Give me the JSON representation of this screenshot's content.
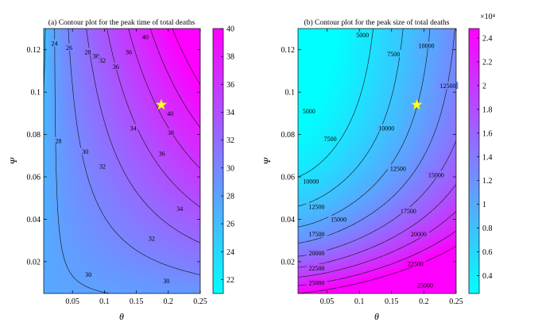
{
  "figure": {
    "colors": {
      "low": "#00ffff",
      "high": "#ff00ff",
      "star": "#ffff33",
      "star_stroke": "#d4d400"
    }
  },
  "chart_data": [
    {
      "type": "heatmap",
      "subtype": "filled-contour",
      "title": "(a) Contour plot for the peak time of total deaths",
      "xlabel": "θ",
      "ylabel": "Ψ",
      "xlim": [
        0.005,
        0.25
      ],
      "ylim": [
        0.005,
        0.13
      ],
      "xticks": [
        0.05,
        0.1,
        0.15,
        0.2,
        0.25
      ],
      "xtick_labels": [
        "0.05",
        "0.1",
        "0.15",
        "0.2",
        "0.25"
      ],
      "yticks": [
        0.02,
        0.04,
        0.06,
        0.08,
        0.1,
        0.12
      ],
      "ytick_labels": [
        "0.02",
        "0.04",
        "0.06",
        "0.08",
        "0.1",
        "0.12"
      ],
      "colorbar": {
        "range": [
          21,
          40
        ],
        "ticks": [
          22,
          24,
          26,
          28,
          30,
          32,
          34,
          36,
          38,
          40
        ],
        "tick_labels": [
          "22",
          "24",
          "26",
          "28",
          "30",
          "32",
          "34",
          "36",
          "38",
          "40"
        ],
        "exponent_label": ""
      },
      "contour_levels": [
        24,
        26,
        28,
        30,
        32,
        34,
        36,
        38,
        40
      ],
      "contour_labels": [
        {
          "text": "24",
          "x": 0.022,
          "y": 0.123
        },
        {
          "text": "26",
          "x": 0.045,
          "y": 0.121
        },
        {
          "text": "28",
          "x": 0.074,
          "y": 0.119
        },
        {
          "text": "30",
          "x": 0.087,
          "y": 0.117
        },
        {
          "text": "32",
          "x": 0.097,
          "y": 0.115
        },
        {
          "text": "36",
          "x": 0.118,
          "y": 0.112
        },
        {
          "text": "36",
          "x": 0.138,
          "y": 0.119
        },
        {
          "text": "40",
          "x": 0.164,
          "y": 0.126
        },
        {
          "text": "28",
          "x": 0.028,
          "y": 0.077
        },
        {
          "text": "30",
          "x": 0.07,
          "y": 0.072
        },
        {
          "text": "32",
          "x": 0.097,
          "y": 0.065
        },
        {
          "text": "34",
          "x": 0.145,
          "y": 0.083
        },
        {
          "text": "40",
          "x": 0.203,
          "y": 0.09
        },
        {
          "text": "38",
          "x": 0.204,
          "y": 0.081
        },
        {
          "text": "36",
          "x": 0.19,
          "y": 0.071
        },
        {
          "text": "34",
          "x": 0.218,
          "y": 0.045
        },
        {
          "text": "32",
          "x": 0.174,
          "y": 0.031
        },
        {
          "text": "30",
          "x": 0.075,
          "y": 0.014
        },
        {
          "text": "30",
          "x": 0.197,
          "y": 0.011
        }
      ],
      "marker": {
        "shape": "star",
        "x": 0.189,
        "y": 0.094
      }
    },
    {
      "type": "heatmap",
      "subtype": "filled-contour",
      "title": "(b) Contour plot for the peak size of total deaths",
      "xlabel": "θ",
      "ylabel": "Ψ",
      "xlim": [
        0.005,
        0.25
      ],
      "ylim": [
        0.005,
        0.13
      ],
      "xticks": [
        0.05,
        0.1,
        0.15,
        0.2,
        0.25
      ],
      "xtick_labels": [
        "0.05",
        "0.1",
        "0.15",
        "0.2",
        "0.25"
      ],
      "yticks": [
        0.02,
        0.04,
        0.06,
        0.08,
        0.1,
        0.12
      ],
      "ytick_labels": [
        "0.02",
        "0.04",
        "0.06",
        "0.08",
        "0.1",
        "0.12"
      ],
      "colorbar": {
        "range": [
          2500,
          24800
        ],
        "ticks": [
          4000,
          6000,
          8000,
          10000,
          12000,
          14000,
          16000,
          18000,
          20000,
          22000,
          24000
        ],
        "tick_labels": [
          "0.4",
          "0.6",
          "0.8",
          "1",
          "1.2",
          "1.4",
          "1.6",
          "1.8",
          "2",
          "2.2",
          "2.4"
        ],
        "exponent_label": "×10⁴"
      },
      "contour_levels": [
        5000,
        7500,
        10000,
        12500,
        15000,
        17500,
        20000,
        22500,
        25000
      ],
      "contour_labels": [
        {
          "text": "5000",
          "x": 0.105,
          "y": 0.127
        },
        {
          "text": "7500",
          "x": 0.153,
          "y": 0.118
        },
        {
          "text": "10000",
          "x": 0.204,
          "y": 0.122
        },
        {
          "text": "12500",
          "x": 0.237,
          "y": 0.103
        },
        {
          "text": "5000",
          "x": 0.022,
          "y": 0.091
        },
        {
          "text": "7500",
          "x": 0.055,
          "y": 0.078
        },
        {
          "text": "10000",
          "x": 0.142,
          "y": 0.083
        },
        {
          "text": "12500",
          "x": 0.16,
          "y": 0.064
        },
        {
          "text": "15000",
          "x": 0.219,
          "y": 0.061
        },
        {
          "text": "10000",
          "x": 0.025,
          "y": 0.058
        },
        {
          "text": "12500",
          "x": 0.034,
          "y": 0.046
        },
        {
          "text": "15000",
          "x": 0.068,
          "y": 0.04
        },
        {
          "text": "17500",
          "x": 0.176,
          "y": 0.044
        },
        {
          "text": "17500",
          "x": 0.034,
          "y": 0.033
        },
        {
          "text": "20000",
          "x": 0.192,
          "y": 0.033
        },
        {
          "text": "20000",
          "x": 0.034,
          "y": 0.024
        },
        {
          "text": "22500",
          "x": 0.187,
          "y": 0.019
        },
        {
          "text": "22500",
          "x": 0.034,
          "y": 0.017
        },
        {
          "text": "25000",
          "x": 0.202,
          "y": 0.009
        },
        {
          "text": "25000",
          "x": 0.034,
          "y": 0.01
        }
      ],
      "marker": {
        "shape": "star",
        "x": 0.189,
        "y": 0.094
      }
    }
  ]
}
